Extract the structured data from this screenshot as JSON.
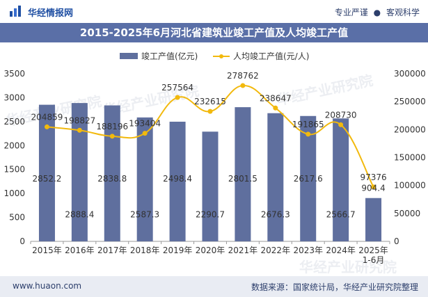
{
  "header": {
    "brand": "华经情报网",
    "tag1": "专业严谨",
    "tag2": "客观科学",
    "separator": "●"
  },
  "footer": {
    "website": "www.huaon.com",
    "source": "数据来源：国家统计局，华经产业研究院整理"
  },
  "watermarks": [
    "华经产业研究院",
    "华经产业研究院",
    "华经产业研究院",
    "华经产业研究院"
  ],
  "colors": {
    "bar": "#5f6f9e",
    "line": "#f2b90d",
    "title_bg": "#5a6fa7",
    "text": "#333333"
  },
  "chart_data": {
    "type": "bar",
    "title": "2015-2025年6月河北省建筑业竣工产值及人均竣工产值",
    "categories": [
      "2015年",
      "2016年",
      "2017年",
      "2018年",
      "2019年",
      "2020年",
      "2021年",
      "2022年",
      "2023年",
      "2024年",
      "2025年\n1-6月"
    ],
    "series": [
      {
        "name": "竣工产值(亿元)",
        "type": "bar",
        "axis": "left",
        "values": [
          2852.2,
          2888.4,
          2838.8,
          2587.3,
          2498.4,
          2290.7,
          2801.5,
          2676.3,
          2617.6,
          2566.7,
          904.4
        ],
        "labels": [
          "2852.2",
          "2888.4",
          "2838.8",
          "2587.3",
          "2498.4",
          "2290.7",
          "2801.5",
          "2676.3",
          "2617.6",
          "2566.7",
          "904.4"
        ]
      },
      {
        "name": "人均竣工产值(元/人)",
        "type": "line",
        "axis": "right",
        "values": [
          204859,
          198827,
          188196,
          193404,
          257564,
          232615,
          278762,
          238647,
          191865,
          208730,
          97376
        ],
        "labels": [
          "204859",
          "198827",
          "188196",
          "193404",
          "257564",
          "232615",
          "278762",
          "238647",
          "191865",
          "208730",
          "97376"
        ]
      }
    ],
    "y_left": {
      "min": 0,
      "max": 3500,
      "ticks": [
        "0",
        "500",
        "1000",
        "1500",
        "2000",
        "2500",
        "3000",
        "3500"
      ]
    },
    "y_right": {
      "min": 0,
      "max": 300000,
      "ticks": [
        "0",
        "50000",
        "100000",
        "150000",
        "200000",
        "250000",
        "300000"
      ]
    },
    "legend_position": "top-center",
    "grid": false
  }
}
